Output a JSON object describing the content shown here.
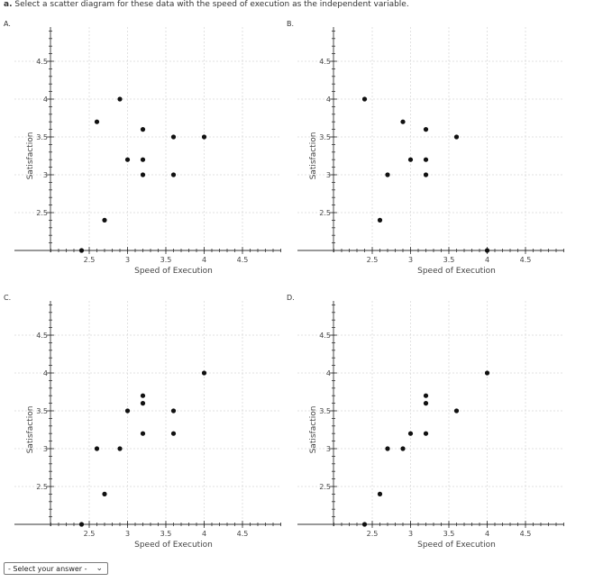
{
  "question": {
    "part_label": "a.",
    "text": "Select a scatter diagram for these data with the speed of execution as the independent variable."
  },
  "answer_select": {
    "placeholder": "- Select your answer -",
    "icon": "chevron-down-icon"
  },
  "chart_data": [
    {
      "panel": "A.",
      "type": "scatter",
      "xlabel": "Speed of Execution",
      "ylabel": "Satisfaction",
      "x_ticks": [
        "2.5",
        "3",
        "3.5",
        "4",
        "4.5"
      ],
      "y_ticks": [
        "2.5",
        "3",
        "3.5",
        "4",
        "4.5"
      ],
      "xlim": [
        2,
        5
      ],
      "ylim": [
        2,
        5
      ],
      "grid": true,
      "points": [
        [
          2.4,
          2.0
        ],
        [
          2.6,
          3.7
        ],
        [
          2.7,
          2.4
        ],
        [
          2.9,
          4.0
        ],
        [
          3.0,
          3.2
        ],
        [
          3.2,
          3.6
        ],
        [
          3.2,
          3.2
        ],
        [
          3.2,
          3.0
        ],
        [
          3.6,
          3.5
        ],
        [
          3.6,
          3.0
        ],
        [
          4.0,
          3.5
        ]
      ]
    },
    {
      "panel": "B.",
      "type": "scatter",
      "xlabel": "Speed of Execution",
      "ylabel": "Satisfaction",
      "x_ticks": [
        "2.5",
        "3",
        "3.5",
        "4",
        "4.5"
      ],
      "y_ticks": [
        "2.5",
        "3",
        "3.5",
        "4",
        "4.5"
      ],
      "xlim": [
        2,
        5
      ],
      "ylim": [
        2,
        5
      ],
      "grid": true,
      "points": [
        [
          2.4,
          4.0
        ],
        [
          2.6,
          2.4
        ],
        [
          2.7,
          3.0
        ],
        [
          2.9,
          3.7
        ],
        [
          3.0,
          3.2
        ],
        [
          3.2,
          3.6
        ],
        [
          3.2,
          3.2
        ],
        [
          3.2,
          3.0
        ],
        [
          3.6,
          3.5
        ],
        [
          4.0,
          2.0
        ]
      ]
    },
    {
      "panel": "C.",
      "type": "scatter",
      "xlabel": "Speed of Execution",
      "ylabel": "Satisfaction",
      "x_ticks": [
        "2.5",
        "3",
        "3.5",
        "4",
        "4.5"
      ],
      "y_ticks": [
        "2.5",
        "3",
        "3.5",
        "4",
        "4.5"
      ],
      "xlim": [
        2,
        5
      ],
      "ylim": [
        2,
        5
      ],
      "grid": true,
      "points": [
        [
          2.4,
          2.0
        ],
        [
          2.6,
          3.0
        ],
        [
          2.7,
          2.4
        ],
        [
          2.9,
          3.0
        ],
        [
          3.0,
          3.5
        ],
        [
          3.2,
          3.7
        ],
        [
          3.2,
          3.6
        ],
        [
          3.2,
          3.2
        ],
        [
          3.6,
          3.5
        ],
        [
          3.6,
          3.2
        ],
        [
          4.0,
          4.0
        ]
      ]
    },
    {
      "panel": "D.",
      "type": "scatter",
      "xlabel": "Speed of Execution",
      "ylabel": "Satisfaction",
      "x_ticks": [
        "2.5",
        "3",
        "3.5",
        "4",
        "4.5"
      ],
      "y_ticks": [
        "2.5",
        "3",
        "3.5",
        "4",
        "4.5"
      ],
      "xlim": [
        2,
        5
      ],
      "ylim": [
        2,
        5
      ],
      "grid": true,
      "points": [
        [
          2.4,
          2.0
        ],
        [
          2.6,
          2.4
        ],
        [
          2.7,
          3.0
        ],
        [
          2.9,
          3.0
        ],
        [
          3.0,
          3.2
        ],
        [
          3.2,
          3.7
        ],
        [
          3.2,
          3.6
        ],
        [
          3.2,
          3.2
        ],
        [
          3.6,
          3.5
        ],
        [
          4.0,
          4.0
        ]
      ]
    }
  ]
}
